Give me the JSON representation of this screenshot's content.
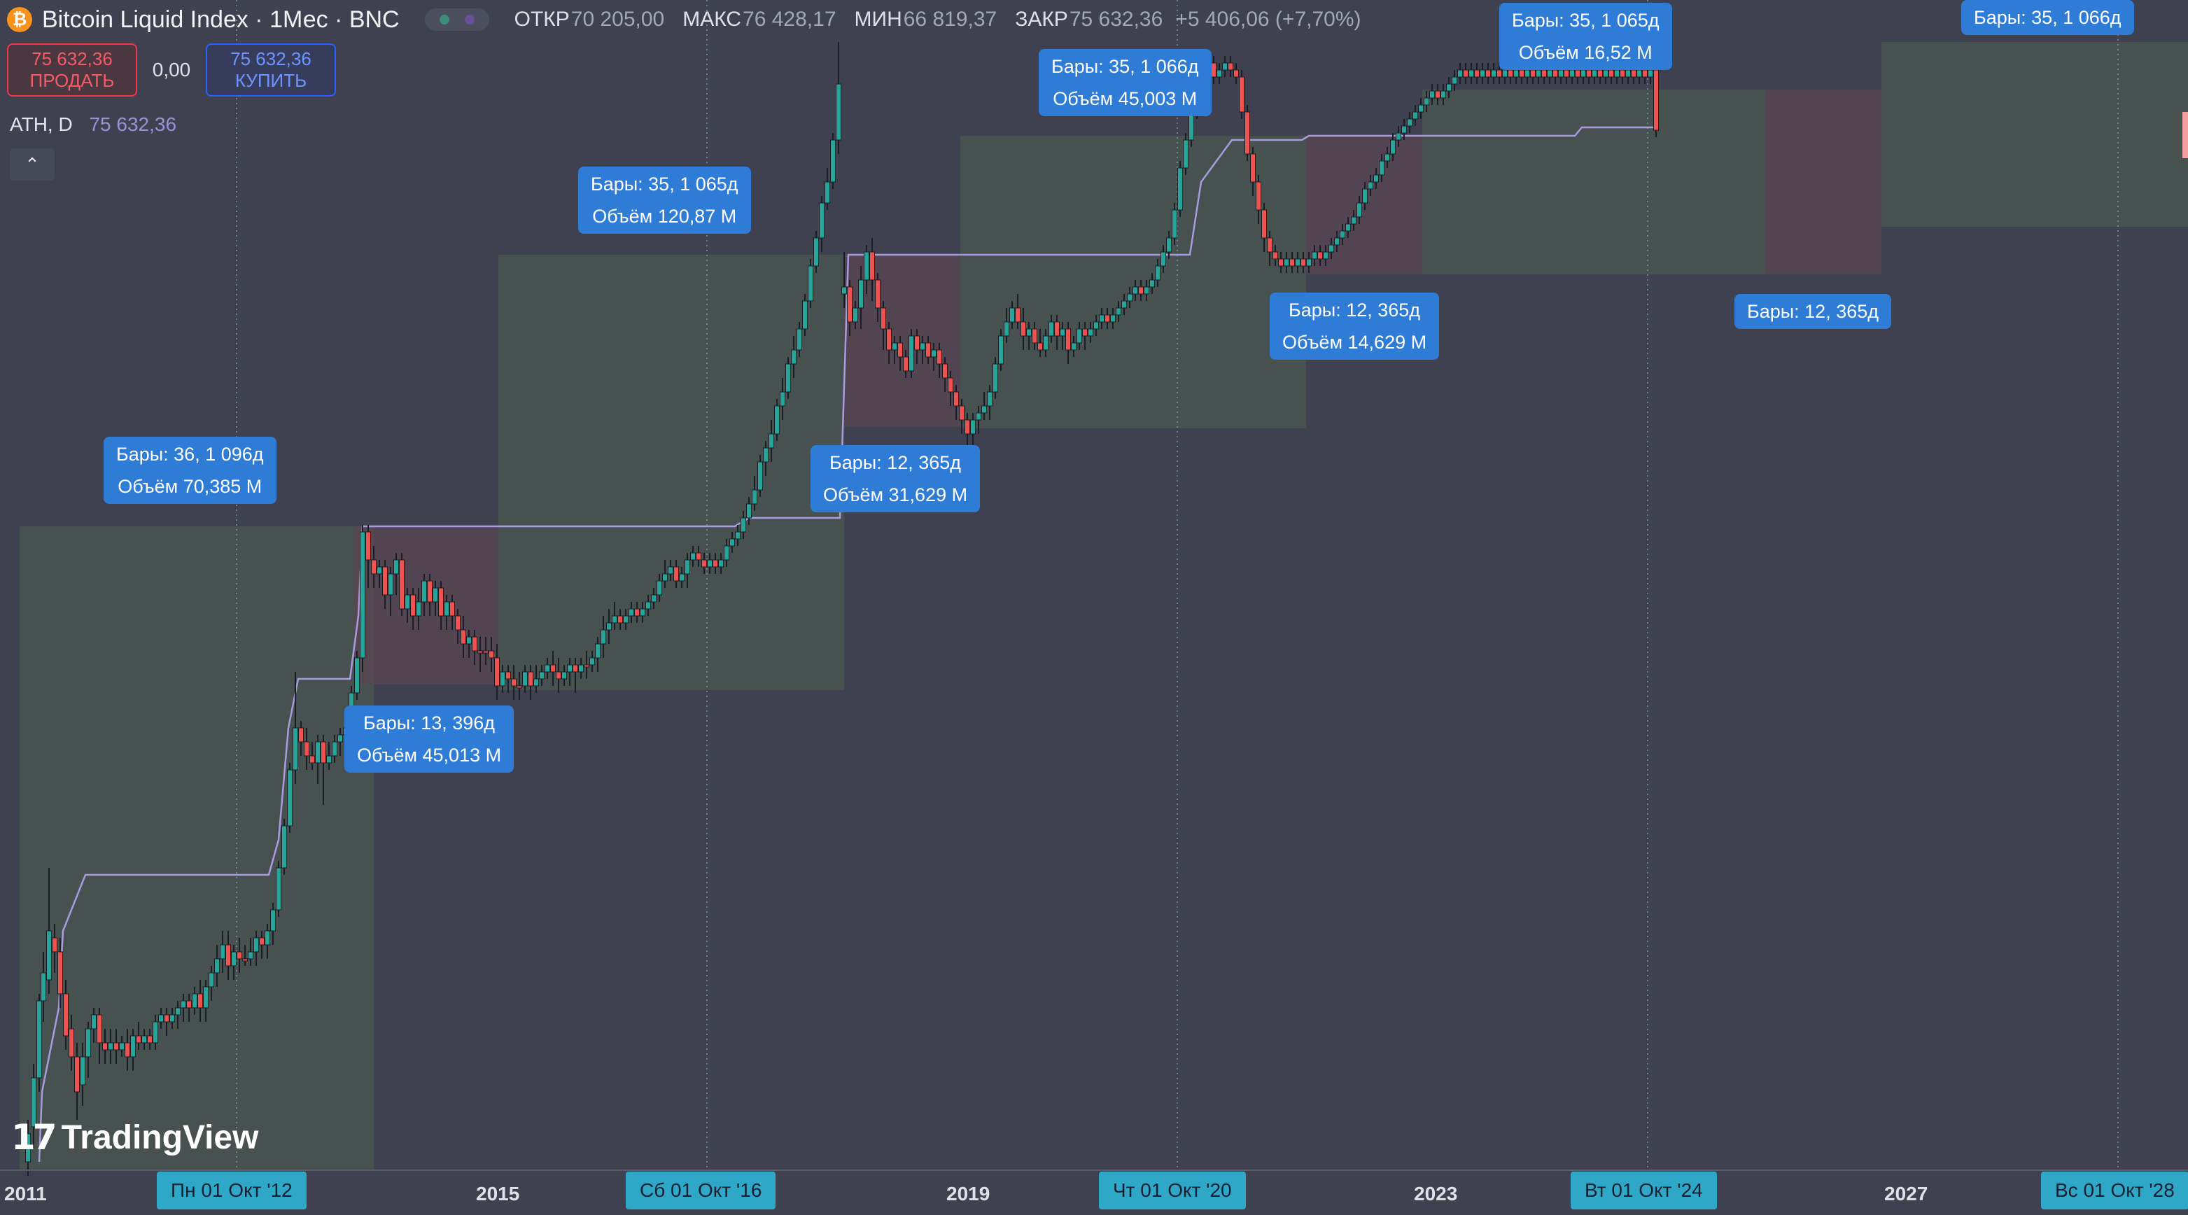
{
  "header": {
    "symbol_title": "Bitcoin Liquid Index · 1Мес · BNC",
    "open_label": "ОТКР",
    "open_value": "70 205,00",
    "high_label": "МАКС",
    "high_value": "76 428,17",
    "low_label": "МИН",
    "low_value": "66 819,37",
    "close_label": "ЗАКР",
    "close_value": "75 632,36",
    "change": "+5 406,06 (+7,70%)"
  },
  "trade": {
    "sell_price": "75 632,36",
    "sell_label": "ПРОДАТЬ",
    "spread": "0,00",
    "buy_price": "75 632,36",
    "buy_label": "КУПИТЬ"
  },
  "indicator": {
    "name": "ATH, D",
    "value": "75 632,36"
  },
  "tooltips": [
    {
      "line1": "Бары: 36, 1 096д",
      "line2": "Объём 70,385 M"
    },
    {
      "line1": "Бары: 13, 396д",
      "line2": "Объём 45,013 M"
    },
    {
      "line1": "Бары: 35, 1 065д",
      "line2": "Объём 120,87 M"
    },
    {
      "line1": "Бары: 12, 365д",
      "line2": "Объём 31,629 M"
    },
    {
      "line1": "Бары: 35, 1 066д",
      "line2": "Объём 45,003 M"
    },
    {
      "line1": "Бары: 12, 365д",
      "line2": "Объём 14,629 M"
    },
    {
      "line1": "Бары: 35, 1 065д",
      "line2": "Объём 16,52 M"
    },
    {
      "line1": "Бары: 12, 365д",
      "line2": ""
    },
    {
      "line1": "Бары: 35, 1 066д",
      "line2": ""
    }
  ],
  "x_axis": {
    "years": [
      "2011",
      "2015",
      "2019",
      "2023",
      "2027"
    ],
    "date_pills": [
      "Пн 01 Окт '12",
      "Сб 01 Окт '16",
      "Чт 01 Окт '20",
      "Вт 01 Окт '24",
      "Вс 01 Окт '28"
    ]
  },
  "brand": {
    "name": "TradingView"
  },
  "colors": {
    "background": "#3f4150",
    "bull": "#26a69a",
    "bear": "#ef5350",
    "range_green": "#4b5750",
    "range_red": "#5b4651",
    "ath_line": "#a99be0",
    "tooltip": "#2e7cd6",
    "date_pill": "#2fa7c7"
  },
  "chart_data": {
    "type": "candlestick",
    "price_scale": "log",
    "interval": "1M",
    "series": [
      {
        "name": "ATH, D"
      }
    ],
    "last_close": 75632.36
  }
}
